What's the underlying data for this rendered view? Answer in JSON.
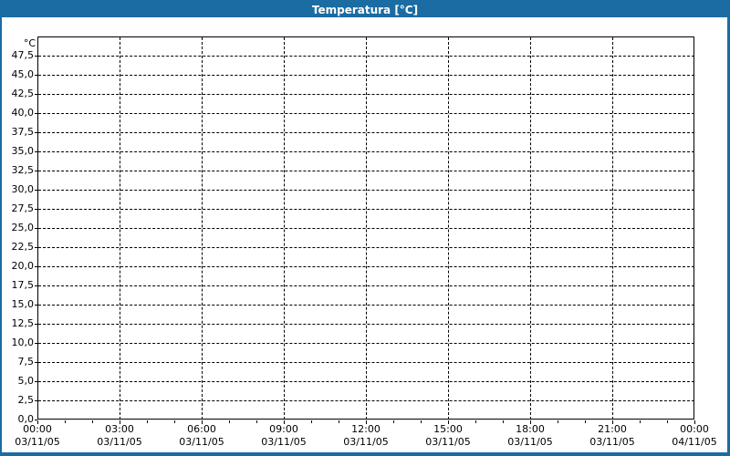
{
  "window": {
    "title": "Temperatura [°C]"
  },
  "colors": {
    "frame_blue": "#1a6ca3",
    "title_text": "#ffffff",
    "plot_background": "#ffffff",
    "grid_line": "#000000",
    "axis_line": "#000000",
    "label_text": "#000000"
  },
  "chart_data": {
    "type": "line",
    "title": "Temperatura [°C]",
    "ylabel": "°C",
    "xlabel": "",
    "ylim": [
      0,
      50
    ],
    "y_tick_step": 2.5,
    "y_tick_labels": [
      "47,5",
      "45,0",
      "42,5",
      "40,0",
      "37,5",
      "35,0",
      "32,5",
      "30,0",
      "27,5",
      "25,0",
      "22,5",
      "20,0",
      "17,5",
      "15,0",
      "12,5",
      "10,0",
      "7,5",
      "5,0",
      "2,5",
      "0,0"
    ],
    "x_major_ticks": [
      {
        "time": "00:00",
        "date": "03/11/05"
      },
      {
        "time": "03:00",
        "date": "03/11/05"
      },
      {
        "time": "06:00",
        "date": "03/11/05"
      },
      {
        "time": "09:00",
        "date": "03/11/05"
      },
      {
        "time": "12:00",
        "date": "03/11/05"
      },
      {
        "time": "15:00",
        "date": "03/11/05"
      },
      {
        "time": "18:00",
        "date": "03/11/05"
      },
      {
        "time": "21:00",
        "date": "03/11/05"
      },
      {
        "time": "00:00",
        "date": "04/11/05"
      }
    ],
    "x_minor_ticks_per_major": 3,
    "grid": "dashed",
    "legend": "none",
    "series": []
  }
}
